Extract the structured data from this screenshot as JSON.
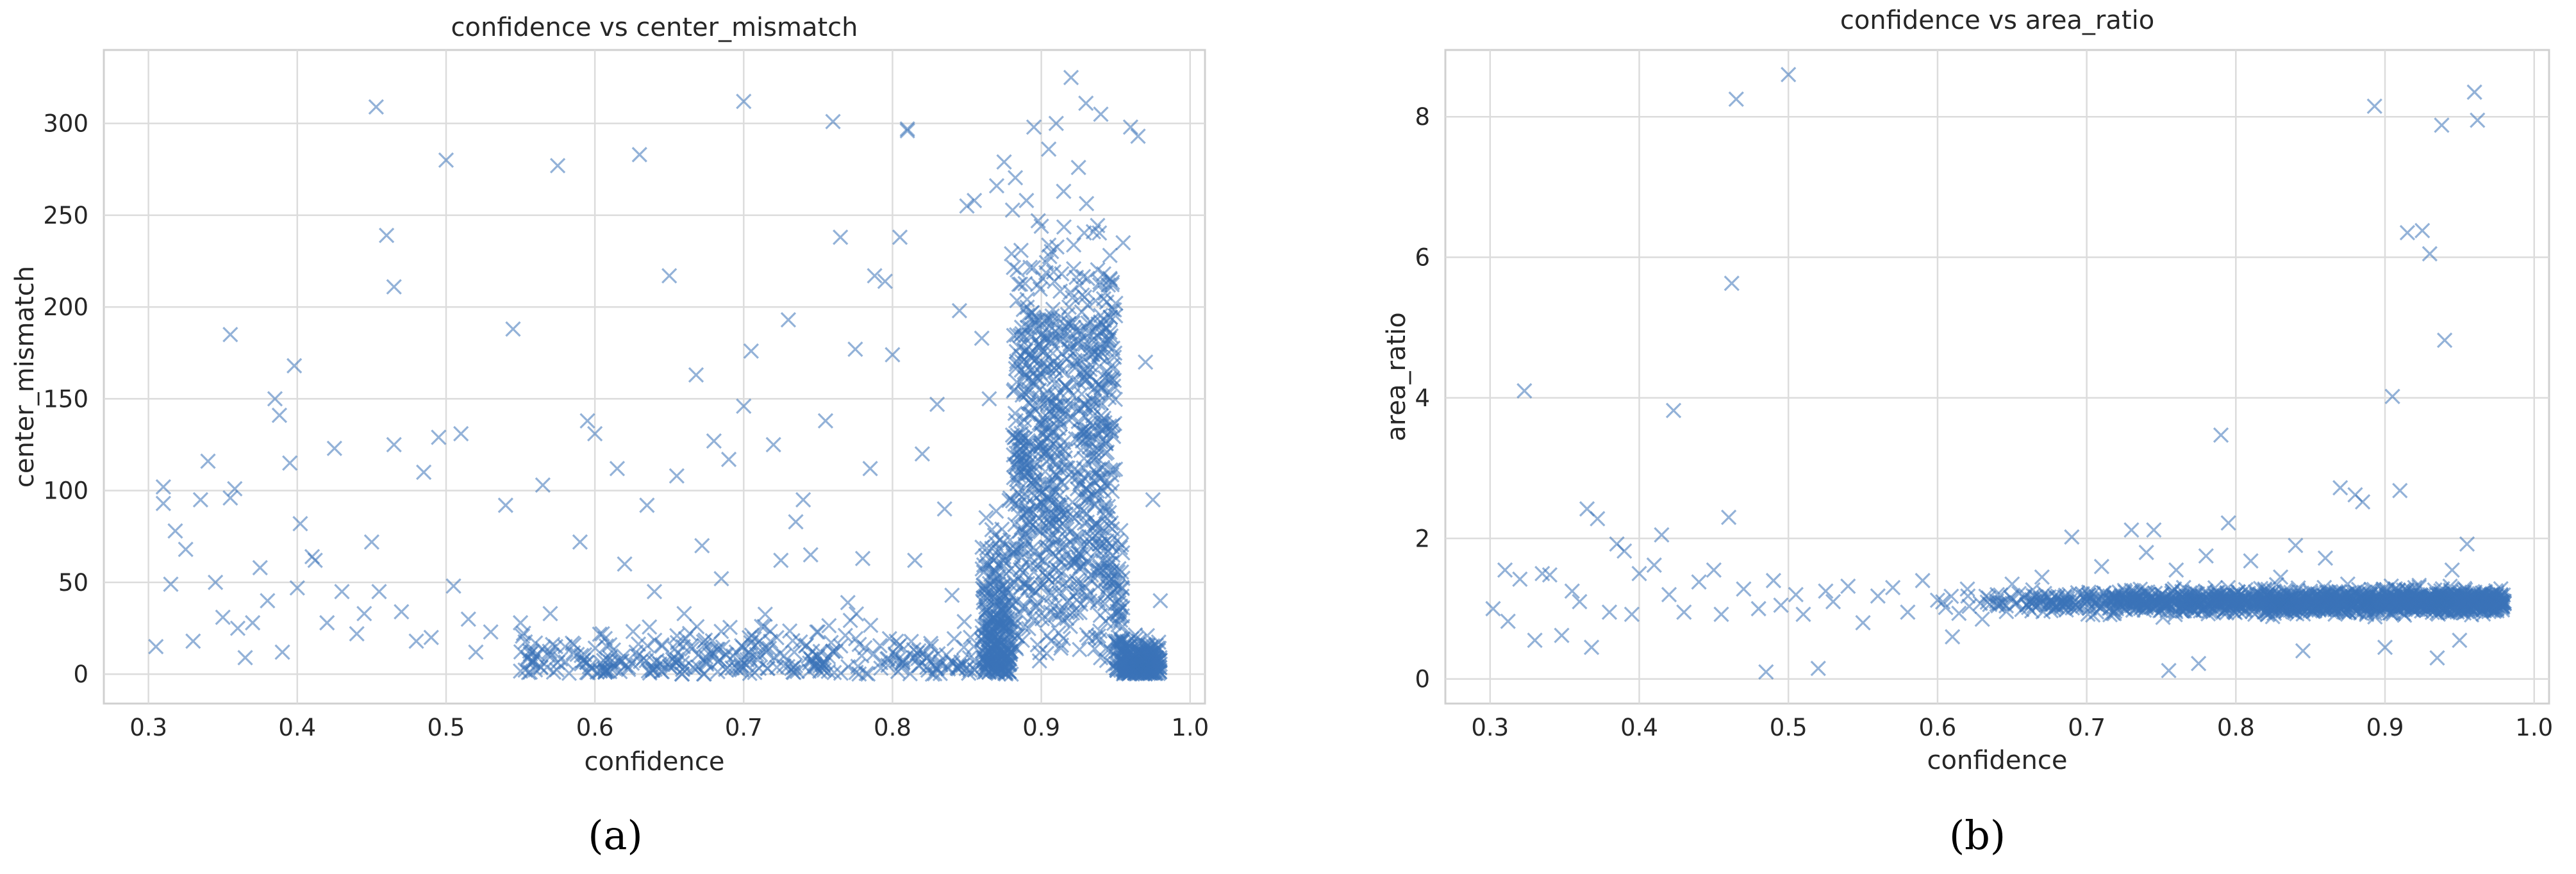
{
  "chart_data": [
    {
      "type": "scatter",
      "panel_label": "(a)",
      "title": "confidence vs center_mismatch",
      "xlabel": "confidence",
      "ylabel": "center_mismatch",
      "xlim": [
        0.27,
        1.01
      ],
      "ylim": [
        -16,
        340
      ],
      "xticks": [
        0.3,
        0.4,
        0.5,
        0.6,
        0.7,
        0.8,
        0.9,
        1.0
      ],
      "xtick_labels": [
        "0.3",
        "0.4",
        "0.5",
        "0.6",
        "0.7",
        "0.8",
        "0.9",
        "1.0"
      ],
      "yticks": [
        0,
        50,
        100,
        150,
        200,
        250,
        300
      ],
      "ytick_labels": [
        "0",
        "50",
        "100",
        "150",
        "200",
        "250",
        "300"
      ],
      "grid": true,
      "marker": "x",
      "color": "#3a73b8",
      "points": [
        [
          0.305,
          15
        ],
        [
          0.31,
          102
        ],
        [
          0.31,
          93
        ],
        [
          0.315,
          49
        ],
        [
          0.318,
          78
        ],
        [
          0.325,
          68
        ],
        [
          0.33,
          18
        ],
        [
          0.335,
          95
        ],
        [
          0.34,
          116
        ],
        [
          0.345,
          50
        ],
        [
          0.35,
          31
        ],
        [
          0.355,
          96
        ],
        [
          0.355,
          185
        ],
        [
          0.358,
          101
        ],
        [
          0.36,
          25
        ],
        [
          0.365,
          9
        ],
        [
          0.37,
          28
        ],
        [
          0.375,
          58
        ],
        [
          0.38,
          40
        ],
        [
          0.385,
          150
        ],
        [
          0.388,
          141
        ],
        [
          0.39,
          12
        ],
        [
          0.395,
          115
        ],
        [
          0.398,
          168
        ],
        [
          0.4,
          47
        ],
        [
          0.402,
          82
        ],
        [
          0.41,
          64
        ],
        [
          0.412,
          62
        ],
        [
          0.42,
          28
        ],
        [
          0.425,
          123
        ],
        [
          0.43,
          45
        ],
        [
          0.44,
          22
        ],
        [
          0.445,
          33
        ],
        [
          0.45,
          72
        ],
        [
          0.453,
          309
        ],
        [
          0.455,
          45
        ],
        [
          0.46,
          239
        ],
        [
          0.465,
          211
        ],
        [
          0.465,
          125
        ],
        [
          0.47,
          34
        ],
        [
          0.48,
          18
        ],
        [
          0.485,
          110
        ],
        [
          0.49,
          20
        ],
        [
          0.495,
          129
        ],
        [
          0.5,
          280
        ],
        [
          0.505,
          48
        ],
        [
          0.51,
          131
        ],
        [
          0.515,
          30
        ],
        [
          0.52,
          12
        ],
        [
          0.53,
          23
        ],
        [
          0.54,
          92
        ],
        [
          0.545,
          188
        ],
        [
          0.55,
          28
        ],
        [
          0.56,
          17
        ],
        [
          0.565,
          103
        ],
        [
          0.57,
          33
        ],
        [
          0.575,
          277
        ],
        [
          0.58,
          15
        ],
        [
          0.59,
          72
        ],
        [
          0.595,
          138
        ],
        [
          0.6,
          131
        ],
        [
          0.605,
          22
        ],
        [
          0.61,
          16
        ],
        [
          0.615,
          112
        ],
        [
          0.62,
          60
        ],
        [
          0.625,
          6
        ],
        [
          0.63,
          283
        ],
        [
          0.635,
          92
        ],
        [
          0.64,
          45
        ],
        [
          0.645,
          16
        ],
        [
          0.65,
          217
        ],
        [
          0.655,
          108
        ],
        [
          0.66,
          33
        ],
        [
          0.668,
          163
        ],
        [
          0.672,
          70
        ],
        [
          0.68,
          127
        ],
        [
          0.685,
          52
        ],
        [
          0.69,
          117
        ],
        [
          0.695,
          12
        ],
        [
          0.7,
          312
        ],
        [
          0.7,
          146
        ],
        [
          0.705,
          176
        ],
        [
          0.712,
          26
        ],
        [
          0.72,
          125
        ],
        [
          0.725,
          62
        ],
        [
          0.73,
          193
        ],
        [
          0.735,
          83
        ],
        [
          0.74,
          95
        ],
        [
          0.745,
          65
        ],
        [
          0.75,
          23
        ],
        [
          0.755,
          138
        ],
        [
          0.76,
          301
        ],
        [
          0.765,
          238
        ],
        [
          0.77,
          39
        ],
        [
          0.775,
          177
        ],
        [
          0.78,
          63
        ],
        [
          0.785,
          112
        ],
        [
          0.788,
          217
        ],
        [
          0.795,
          214
        ],
        [
          0.8,
          174
        ],
        [
          0.805,
          238
        ],
        [
          0.81,
          297
        ],
        [
          0.81,
          296
        ],
        [
          0.815,
          62
        ],
        [
          0.82,
          120
        ],
        [
          0.83,
          147
        ],
        [
          0.835,
          90
        ],
        [
          0.84,
          43
        ],
        [
          0.845,
          198
        ],
        [
          0.85,
          255
        ],
        [
          0.855,
          258
        ],
        [
          0.86,
          183
        ],
        [
          0.865,
          150
        ],
        [
          0.87,
          266
        ],
        [
          0.875,
          279
        ],
        [
          0.88,
          229
        ],
        [
          0.885,
          178
        ],
        [
          0.89,
          258
        ],
        [
          0.895,
          298
        ],
        [
          0.9,
          244
        ],
        [
          0.905,
          286
        ],
        [
          0.91,
          300
        ],
        [
          0.915,
          263
        ],
        [
          0.92,
          325
        ],
        [
          0.925,
          276
        ],
        [
          0.93,
          311
        ],
        [
          0.935,
          241
        ],
        [
          0.94,
          305
        ],
        [
          0.945,
          212
        ],
        [
          0.95,
          202
        ],
        [
          0.955,
          235
        ],
        [
          0.96,
          298
        ],
        [
          0.965,
          293
        ],
        [
          0.97,
          170
        ],
        [
          0.975,
          95
        ],
        [
          0.98,
          40
        ]
      ]
    },
    {
      "type": "scatter",
      "panel_label": "(b)",
      "title": "confidence vs area_ratio",
      "xlabel": "confidence",
      "ylabel": "area_ratio",
      "xlim": [
        0.27,
        1.01
      ],
      "ylim": [
        -0.35,
        8.95
      ],
      "xticks": [
        0.3,
        0.4,
        0.5,
        0.6,
        0.7,
        0.8,
        0.9,
        1.0
      ],
      "xtick_labels": [
        "0.3",
        "0.4",
        "0.5",
        "0.6",
        "0.7",
        "0.8",
        "0.9",
        "1.0"
      ],
      "yticks": [
        0,
        2,
        4,
        6,
        8
      ],
      "ytick_labels": [
        "0",
        "2",
        "4",
        "6",
        "8"
      ],
      "grid": true,
      "marker": "x",
      "color": "#3a73b8",
      "points": [
        [
          0.302,
          1.0
        ],
        [
          0.31,
          1.55
        ],
        [
          0.312,
          0.82
        ],
        [
          0.32,
          1.42
        ],
        [
          0.323,
          4.1
        ],
        [
          0.33,
          0.55
        ],
        [
          0.335,
          1.5
        ],
        [
          0.34,
          1.48
        ],
        [
          0.348,
          0.62
        ],
        [
          0.355,
          1.25
        ],
        [
          0.36,
          1.1
        ],
        [
          0.365,
          2.42
        ],
        [
          0.368,
          0.45
        ],
        [
          0.372,
          2.28
        ],
        [
          0.38,
          0.95
        ],
        [
          0.385,
          1.92
        ],
        [
          0.39,
          1.82
        ],
        [
          0.395,
          0.92
        ],
        [
          0.4,
          1.5
        ],
        [
          0.41,
          1.62
        ],
        [
          0.415,
          2.05
        ],
        [
          0.42,
          1.2
        ],
        [
          0.423,
          3.82
        ],
        [
          0.43,
          0.95
        ],
        [
          0.44,
          1.38
        ],
        [
          0.45,
          1.55
        ],
        [
          0.455,
          0.92
        ],
        [
          0.46,
          2.3
        ],
        [
          0.462,
          5.63
        ],
        [
          0.465,
          8.25
        ],
        [
          0.47,
          1.28
        ],
        [
          0.48,
          1.0
        ],
        [
          0.485,
          0.1
        ],
        [
          0.49,
          1.4
        ],
        [
          0.495,
          1.05
        ],
        [
          0.5,
          8.6
        ],
        [
          0.505,
          1.2
        ],
        [
          0.51,
          0.92
        ],
        [
          0.52,
          0.15
        ],
        [
          0.525,
          1.25
        ],
        [
          0.53,
          1.1
        ],
        [
          0.54,
          1.32
        ],
        [
          0.55,
          0.8
        ],
        [
          0.56,
          1.18
        ],
        [
          0.57,
          1.3
        ],
        [
          0.58,
          0.95
        ],
        [
          0.59,
          1.4
        ],
        [
          0.6,
          1.12
        ],
        [
          0.61,
          0.6
        ],
        [
          0.62,
          1.28
        ],
        [
          0.63,
          0.85
        ],
        [
          0.64,
          1.2
        ],
        [
          0.65,
          1.35
        ],
        [
          0.66,
          1.05
        ],
        [
          0.67,
          1.45
        ],
        [
          0.68,
          1.15
        ],
        [
          0.69,
          2.02
        ],
        [
          0.7,
          1.1
        ],
        [
          0.71,
          1.6
        ],
        [
          0.72,
          1.0
        ],
        [
          0.73,
          2.12
        ],
        [
          0.74,
          1.8
        ],
        [
          0.745,
          2.12
        ],
        [
          0.75,
          1.2
        ],
        [
          0.755,
          0.12
        ],
        [
          0.76,
          1.55
        ],
        [
          0.77,
          1.05
        ],
        [
          0.775,
          0.22
        ],
        [
          0.78,
          1.75
        ],
        [
          0.79,
          3.47
        ],
        [
          0.795,
          2.22
        ],
        [
          0.8,
          1.2
        ],
        [
          0.81,
          1.68
        ],
        [
          0.82,
          1.05
        ],
        [
          0.83,
          1.45
        ],
        [
          0.84,
          1.9
        ],
        [
          0.845,
          0.4
        ],
        [
          0.85,
          1.25
        ],
        [
          0.86,
          1.72
        ],
        [
          0.865,
          1.1
        ],
        [
          0.87,
          2.72
        ],
        [
          0.875,
          1.35
        ],
        [
          0.88,
          2.62
        ],
        [
          0.885,
          2.52
        ],
        [
          0.89,
          1.2
        ],
        [
          0.893,
          8.15
        ],
        [
          0.9,
          0.45
        ],
        [
          0.905,
          4.02
        ],
        [
          0.91,
          2.68
        ],
        [
          0.915,
          6.35
        ],
        [
          0.92,
          1.3
        ],
        [
          0.925,
          6.38
        ],
        [
          0.93,
          6.05
        ],
        [
          0.935,
          0.3
        ],
        [
          0.938,
          7.88
        ],
        [
          0.94,
          4.82
        ],
        [
          0.945,
          1.55
        ],
        [
          0.95,
          0.55
        ],
        [
          0.955,
          1.92
        ],
        [
          0.96,
          8.35
        ],
        [
          0.962,
          7.95
        ],
        [
          0.965,
          1.22
        ],
        [
          0.97,
          1.12
        ],
        [
          0.98,
          1.08
        ]
      ]
    }
  ]
}
